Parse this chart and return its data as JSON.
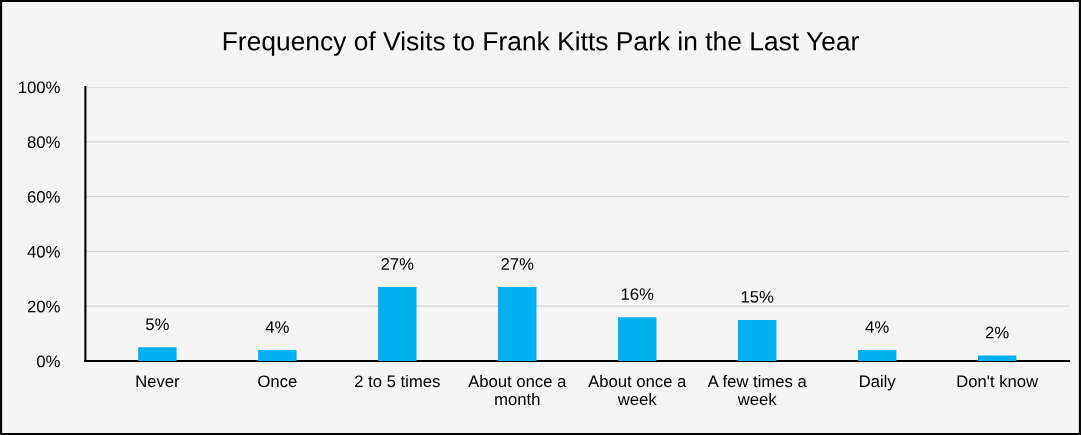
{
  "chart_data": {
    "type": "bar",
    "title": "Frequency of Visits to Frank Kitts Park in the Last Year",
    "categories": [
      "Never",
      "Once",
      "2 to 5 times",
      "About once a month",
      "About once a week",
      "A few times a week",
      "Daily",
      "Don't know"
    ],
    "values": [
      5,
      4,
      27,
      27,
      16,
      15,
      4,
      2
    ],
    "value_labels": [
      "5%",
      "4%",
      "27%",
      "27%",
      "16%",
      "15%",
      "4%",
      "2%"
    ],
    "color": "#00b0f0",
    "ylim": [
      0,
      100
    ],
    "yticks": [
      {
        "value": 0,
        "label": "0%"
      },
      {
        "value": 20,
        "label": "20%"
      },
      {
        "value": 40,
        "label": "40%"
      },
      {
        "value": 60,
        "label": "60%"
      },
      {
        "value": 80,
        "label": "80%"
      },
      {
        "value": 100,
        "label": "100%"
      }
    ],
    "grid": "y",
    "legend": false
  }
}
